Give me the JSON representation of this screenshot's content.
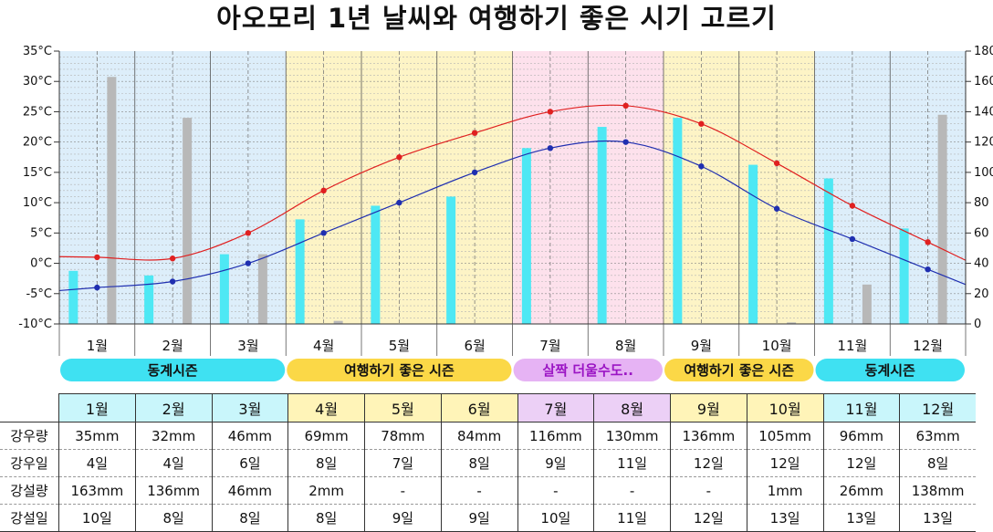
{
  "title": "아오모리 1년 날씨와 여행하기 좋은 시기 고르기",
  "chart_data": {
    "type": "line",
    "categories": [
      "1월",
      "2월",
      "3월",
      "4월",
      "5월",
      "6월",
      "7월",
      "8월",
      "9월",
      "10월",
      "11월",
      "12월"
    ],
    "y_left": {
      "ticks": [
        "35°C",
        "30°C",
        "25°C",
        "20°C",
        "15°C",
        "10°C",
        "5°C",
        "0°C",
        "-5°C",
        "-10°C"
      ],
      "range": [
        -10,
        35
      ]
    },
    "y_right": {
      "ticks": [
        "180",
        "160",
        "140",
        "120",
        "100",
        "80",
        "60",
        "40",
        "20",
        "0"
      ],
      "range": [
        0,
        180
      ]
    },
    "series": [
      {
        "type": "line",
        "axis": "left",
        "color": "#e02020",
        "values": [
          1,
          0.8,
          5,
          12,
          17.5,
          21.5,
          25,
          26,
          23,
          16.5,
          9.5,
          3.5
        ]
      },
      {
        "type": "line",
        "axis": "left",
        "color": "#1f2fb0",
        "values": [
          -4,
          -3,
          0,
          5,
          10,
          15,
          19,
          20,
          16,
          9,
          4,
          -1
        ]
      },
      {
        "type": "bar",
        "axis": "right",
        "color": "#4ee8f4",
        "values": [
          35,
          32,
          46,
          69,
          78,
          84,
          116,
          130,
          136,
          105,
          96,
          63
        ]
      },
      {
        "type": "bar",
        "axis": "right",
        "color": "#b8b8b8",
        "values": [
          163,
          136,
          46,
          2,
          0,
          0,
          0,
          0,
          0,
          1,
          26,
          138
        ]
      }
    ],
    "seasons": [
      {
        "label": "동계시즌",
        "from": 0,
        "to": 2,
        "bg": "#ddeefa",
        "pill": "#3fe1f2",
        "text": "#111111"
      },
      {
        "label": "여행하기 좋은 시즌",
        "from": 3,
        "to": 5,
        "bg": "#fdf4c6",
        "pill": "#fbd847",
        "text": "#111111"
      },
      {
        "label": "살짝 더울수도..",
        "from": 6,
        "to": 7,
        "bg": "#fde1ec",
        "pill": "#e6b3f4",
        "text": "#9b15c4"
      },
      {
        "label": "여행하기 좋은 시즌",
        "from": 8,
        "to": 9,
        "bg": "#fdf4c6",
        "pill": "#fbd847",
        "text": "#111111"
      },
      {
        "label": "동계시즌",
        "from": 10,
        "to": 11,
        "bg": "#ddeefa",
        "pill": "#3fe1f2",
        "text": "#111111"
      }
    ]
  },
  "table": {
    "months": [
      "1월",
      "2월",
      "3월",
      "4월",
      "5월",
      "6월",
      "7월",
      "8월",
      "9월",
      "10월",
      "11월",
      "12월"
    ],
    "month_colors": [
      "#c9f6fb",
      "#c9f6fb",
      "#c9f6fb",
      "#fff4b8",
      "#fff4b8",
      "#fff4b8",
      "#ecd0f6",
      "#ecd0f6",
      "#fff4b8",
      "#fff4b8",
      "#c9f6fb",
      "#c9f6fb"
    ],
    "rows": [
      {
        "label": "강우량",
        "values": [
          "35mm",
          "32mm",
          "46mm",
          "69mm",
          "78mm",
          "84mm",
          "116mm",
          "130mm",
          "136mm",
          "105mm",
          "96mm",
          "63mm"
        ]
      },
      {
        "label": "강우일",
        "values": [
          "4일",
          "4일",
          "6일",
          "8일",
          "7일",
          "8일",
          "9일",
          "11일",
          "12일",
          "12일",
          "12일",
          "8일"
        ]
      },
      {
        "label": "강설량",
        "values": [
          "163mm",
          "136mm",
          "46mm",
          "2mm",
          "-",
          "-",
          "-",
          "-",
          "-",
          "1mm",
          "26mm",
          "138mm"
        ]
      },
      {
        "label": "강설일",
        "values": [
          "10일",
          "8일",
          "8일",
          "8일",
          "9일",
          "9일",
          "10일",
          "11일",
          "12일",
          "13일",
          "13일",
          "13일"
        ]
      }
    ]
  }
}
